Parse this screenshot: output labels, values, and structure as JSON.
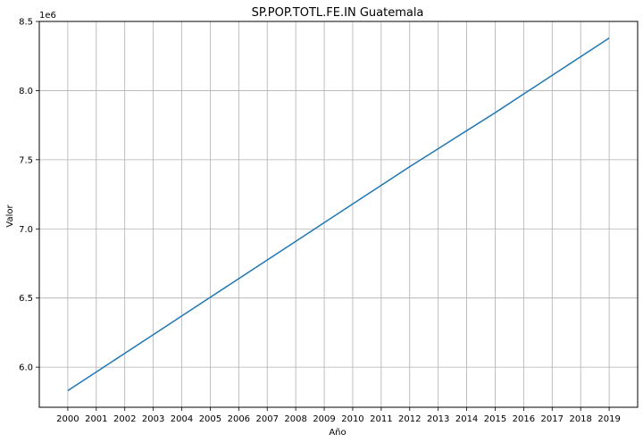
{
  "chart_data": {
    "type": "line",
    "title": "SP.POP.TOTL.FE.IN Guatemala",
    "xlabel": "Año",
    "ylabel": "Valor",
    "y_offset_label": "1e6",
    "grid": true,
    "x": [
      2000,
      2001,
      2002,
      2003,
      2004,
      2005,
      2006,
      2007,
      2008,
      2009,
      2010,
      2011,
      2012,
      2013,
      2014,
      2015,
      2016,
      2017,
      2018,
      2019
    ],
    "x_tick_labels": [
      "2000",
      "2001",
      "2002",
      "2003",
      "2004",
      "2005",
      "2006",
      "2007",
      "2008",
      "2009",
      "2010",
      "2011",
      "2012",
      "2013",
      "2014",
      "2015",
      "2016",
      "2017",
      "2018",
      "2019"
    ],
    "y_ticks": [
      6.0,
      6.5,
      7.0,
      7.5,
      8.0,
      8.5
    ],
    "y_tick_labels": [
      "6.0",
      "6.5",
      "7.0",
      "7.5",
      "8.0",
      "8.5"
    ],
    "ylim": [
      5.71,
      8.5
    ],
    "series": [
      {
        "color": "#1f77b4",
        "values": [
          5.83,
          5.965,
          6.1,
          6.235,
          6.37,
          6.505,
          6.64,
          6.775,
          6.91,
          7.045,
          7.18,
          7.315,
          7.45,
          7.58,
          7.71,
          7.84,
          7.975,
          8.11,
          8.245,
          8.38
        ]
      }
    ]
  }
}
